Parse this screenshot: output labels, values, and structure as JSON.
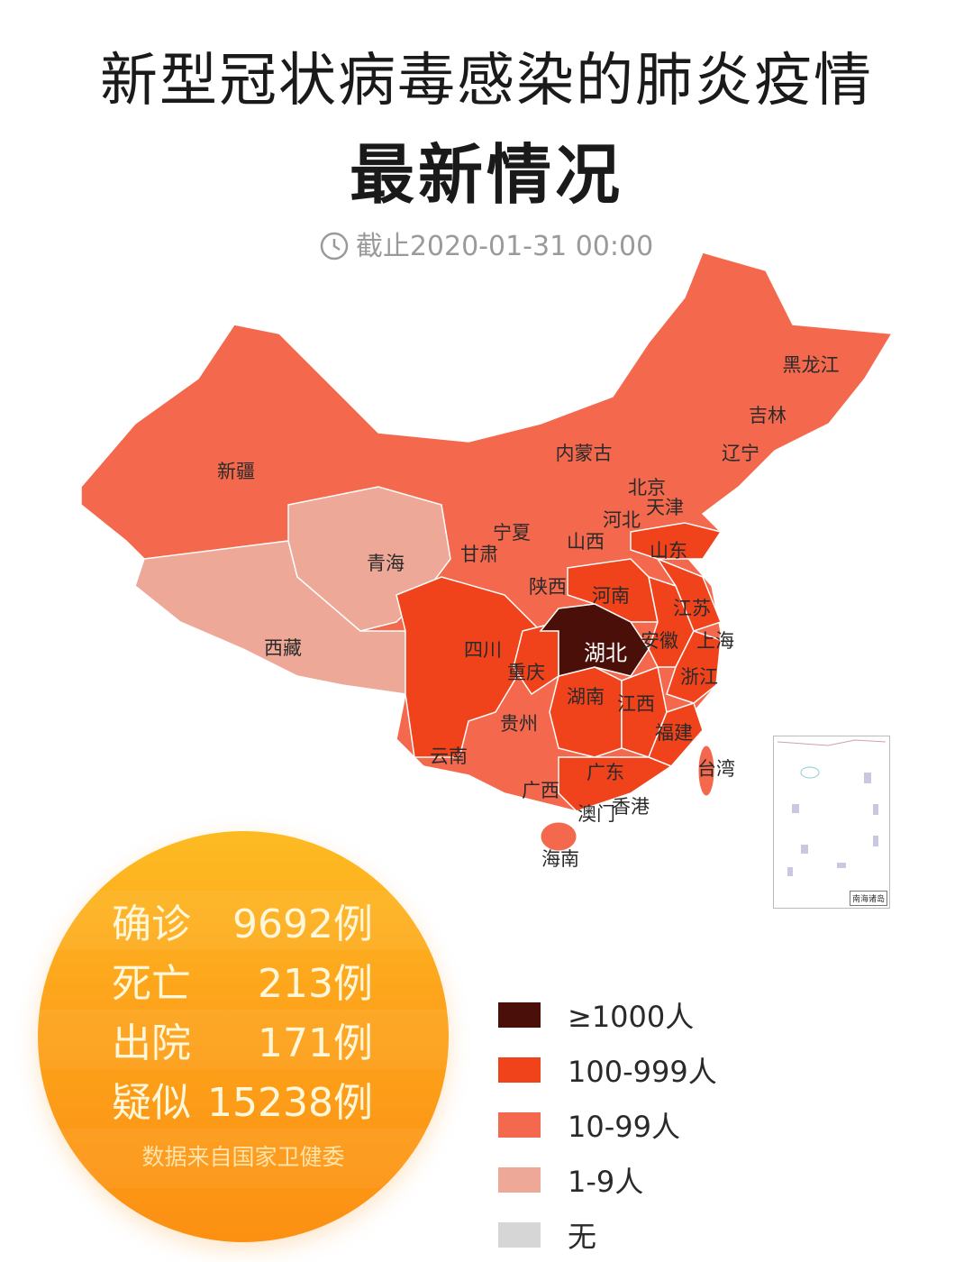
{
  "header": {
    "title": "新型冠状病毒感染的肺炎疫情",
    "subtitle": "最新情况",
    "timestamp": "截止2020-01-31 00:00",
    "timestamp_icon": "clock-icon"
  },
  "legend": [
    {
      "label": "≥1000人",
      "color": "#4a0f08"
    },
    {
      "label": "100-999人",
      "color": "#f0421b"
    },
    {
      "label": "10-99人",
      "color": "#f4694d"
    },
    {
      "label": "1-9人",
      "color": "#eda897"
    },
    {
      "label": "无",
      "color": "#d6d6d6"
    }
  ],
  "provinces": [
    {
      "name": "黑龙江",
      "tier": 2
    },
    {
      "name": "吉林",
      "tier": 2
    },
    {
      "name": "辽宁",
      "tier": 2
    },
    {
      "name": "内蒙古",
      "tier": 2
    },
    {
      "name": "北京",
      "tier": 1
    },
    {
      "name": "天津",
      "tier": 2
    },
    {
      "name": "河北",
      "tier": 2
    },
    {
      "name": "山西",
      "tier": 2
    },
    {
      "name": "山东",
      "tier": 1
    },
    {
      "name": "新疆",
      "tier": 2
    },
    {
      "name": "宁夏",
      "tier": 2
    },
    {
      "name": "甘肃",
      "tier": 2
    },
    {
      "name": "青海",
      "tier": 3
    },
    {
      "name": "陕西",
      "tier": 2
    },
    {
      "name": "河南",
      "tier": 1
    },
    {
      "name": "江苏",
      "tier": 1
    },
    {
      "name": "西藏",
      "tier": 3
    },
    {
      "name": "四川",
      "tier": 1
    },
    {
      "name": "湖北",
      "tier": 0
    },
    {
      "name": "安徽",
      "tier": 1
    },
    {
      "name": "上海",
      "tier": 1
    },
    {
      "name": "重庆",
      "tier": 1
    },
    {
      "name": "浙江",
      "tier": 1
    },
    {
      "name": "湖南",
      "tier": 1
    },
    {
      "name": "江西",
      "tier": 1
    },
    {
      "name": "贵州",
      "tier": 2
    },
    {
      "name": "福建",
      "tier": 1
    },
    {
      "name": "云南",
      "tier": 2
    },
    {
      "name": "台湾",
      "tier": 2
    },
    {
      "name": "广东",
      "tier": 1
    },
    {
      "name": "广西",
      "tier": 2
    },
    {
      "name": "澳门",
      "tier": 2
    },
    {
      "name": "香港",
      "tier": 2
    },
    {
      "name": "海南",
      "tier": 2
    }
  ],
  "inset": {
    "label": "南海诸岛"
  },
  "stats": {
    "rows": [
      {
        "label": "确诊",
        "value": "9692例"
      },
      {
        "label": "死亡",
        "value": "213例"
      },
      {
        "label": "出院",
        "value": "171例"
      },
      {
        "label": "疑似",
        "value": "15238例"
      }
    ],
    "source": "数据来自国家卫健委"
  }
}
